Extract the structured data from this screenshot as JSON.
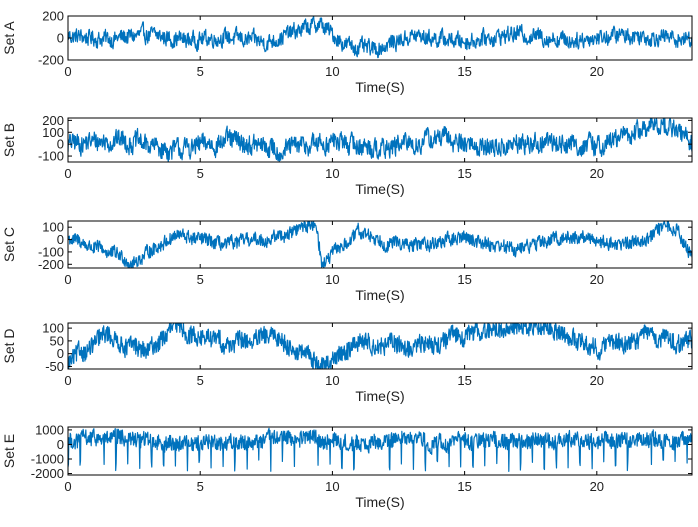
{
  "chart_data": [
    {
      "type": "line",
      "ylabel": "Set A",
      "xlabel": "Time(S)",
      "xlim": [
        0,
        23.6
      ],
      "ylim": [
        -200,
        200
      ],
      "xticks": [
        "0",
        "5",
        "10",
        "15",
        "20"
      ],
      "yticks": [
        "200",
        "0",
        "-200"
      ],
      "yticks_values": [
        200,
        0,
        -200
      ],
      "grid": false,
      "color": "#0072BD",
      "description_series": [
        {
          "x": 0,
          "y": 20
        },
        {
          "x": 1.5,
          "y": -10
        },
        {
          "x": 3.0,
          "y": 30
        },
        {
          "x": 4.5,
          "y": -20
        },
        {
          "x": 6.0,
          "y": 10
        },
        {
          "x": 7.5,
          "y": -40
        },
        {
          "x": 9.0,
          "y": 90
        },
        {
          "x": 9.5,
          "y": 130
        },
        {
          "x": 10.5,
          "y": -60
        },
        {
          "x": 11.5,
          "y": -110
        },
        {
          "x": 13.0,
          "y": 20
        },
        {
          "x": 15.0,
          "y": -30
        },
        {
          "x": 17.0,
          "y": 40
        },
        {
          "x": 19.0,
          "y": -20
        },
        {
          "x": 21.0,
          "y": 30
        },
        {
          "x": 23.6,
          "y": -10
        }
      ],
      "amplitude": 70,
      "wiggle": 0.28
    },
    {
      "type": "line",
      "ylabel": "Set B",
      "xlabel": "Time(S)",
      "xlim": [
        0,
        23.6
      ],
      "ylim": [
        -150,
        220
      ],
      "xticks": [
        "0",
        "5",
        "10",
        "15",
        "20"
      ],
      "yticks": [
        "200",
        "100",
        "0",
        "-100"
      ],
      "yticks_values": [
        200,
        100,
        0,
        -100
      ],
      "grid": false,
      "color": "#0072BD",
      "description_series": [
        {
          "x": 0,
          "y": 0
        },
        {
          "x": 2.0,
          "y": 40
        },
        {
          "x": 4.0,
          "y": -60
        },
        {
          "x": 6.0,
          "y": 30
        },
        {
          "x": 8.0,
          "y": -50
        },
        {
          "x": 10.0,
          "y": 20
        },
        {
          "x": 12.0,
          "y": -40
        },
        {
          "x": 14.0,
          "y": 50
        },
        {
          "x": 16.0,
          "y": -30
        },
        {
          "x": 18.0,
          "y": 20
        },
        {
          "x": 20.0,
          "y": -20
        },
        {
          "x": 22.5,
          "y": 180
        },
        {
          "x": 23.6,
          "y": 20
        }
      ],
      "amplitude": 90,
      "wiggle": 0.22
    },
    {
      "type": "line",
      "ylabel": "Set C",
      "xlabel": "Time(S)",
      "xlim": [
        0,
        23.6
      ],
      "ylim": [
        -230,
        150
      ],
      "xticks": [
        "0",
        "5",
        "10",
        "15",
        "20"
      ],
      "yticks": [
        "100",
        "0",
        "-100",
        "-200"
      ],
      "yticks_values": [
        100,
        0,
        -100,
        -200
      ],
      "grid": false,
      "color": "#0072BD",
      "description_series": [
        {
          "x": 0,
          "y": 10
        },
        {
          "x": 2.5,
          "y": -180
        },
        {
          "x": 4.0,
          "y": 40
        },
        {
          "x": 6.0,
          "y": -60
        },
        {
          "x": 8.0,
          "y": 30
        },
        {
          "x": 9.4,
          "y": 140
        },
        {
          "x": 9.6,
          "y": -200
        },
        {
          "x": 11.0,
          "y": 50
        },
        {
          "x": 13.0,
          "y": -60
        },
        {
          "x": 15.0,
          "y": 20
        },
        {
          "x": 17.0,
          "y": -80
        },
        {
          "x": 19.0,
          "y": 30
        },
        {
          "x": 21.0,
          "y": -40
        },
        {
          "x": 23.0,
          "y": 110
        },
        {
          "x": 23.6,
          "y": -150
        }
      ],
      "amplitude": 80,
      "wiggle": 0.09
    },
    {
      "type": "line",
      "ylabel": "Set D",
      "xlabel": "Time(S)",
      "xlim": [
        0,
        23.6
      ],
      "ylim": [
        -60,
        120
      ],
      "xticks": [
        "0",
        "5",
        "10",
        "15",
        "20"
      ],
      "yticks": [
        "100",
        "50",
        "0",
        "-50"
      ],
      "yticks_values": [
        100,
        50,
        0,
        -50
      ],
      "grid": false,
      "color": "#0072BD",
      "description_series": [
        {
          "x": 0,
          "y": -40
        },
        {
          "x": 1.5,
          "y": 70
        },
        {
          "x": 3.0,
          "y": 0
        },
        {
          "x": 4.0,
          "y": 100
        },
        {
          "x": 6.0,
          "y": 40
        },
        {
          "x": 8.0,
          "y": 60
        },
        {
          "x": 9.7,
          "y": -50
        },
        {
          "x": 11.0,
          "y": 50
        },
        {
          "x": 13.0,
          "y": 20
        },
        {
          "x": 15.0,
          "y": 70
        },
        {
          "x": 16.5,
          "y": 100
        },
        {
          "x": 18.0,
          "y": 110
        },
        {
          "x": 20.0,
          "y": 30
        },
        {
          "x": 22.0,
          "y": 60
        },
        {
          "x": 23.6,
          "y": 40
        }
      ],
      "amplitude": 55,
      "wiggle": 0.08
    },
    {
      "type": "line",
      "ylabel": "Set E",
      "xlabel": "Time(S)",
      "xlim": [
        0,
        23.6
      ],
      "ylim": [
        -2100,
        1200
      ],
      "xticks": [
        "0",
        "5",
        "10",
        "15",
        "20"
      ],
      "yticks": [
        "1000",
        "0",
        "-1000",
        "-2000"
      ],
      "yticks_values": [
        1000,
        0,
        -1000,
        -2000
      ],
      "grid": false,
      "color": "#0072BD",
      "description_series": [
        {
          "x": 0,
          "y": 300
        },
        {
          "x": 5.0,
          "y": 200
        },
        {
          "x": 10.0,
          "y": 300
        },
        {
          "x": 15.0,
          "y": 200
        },
        {
          "x": 20.0,
          "y": 300
        },
        {
          "x": 23.6,
          "y": 200
        }
      ],
      "amplitude": 900,
      "spike_period": 0.45,
      "spike_depth": -1900,
      "wiggle": 0.05
    }
  ]
}
